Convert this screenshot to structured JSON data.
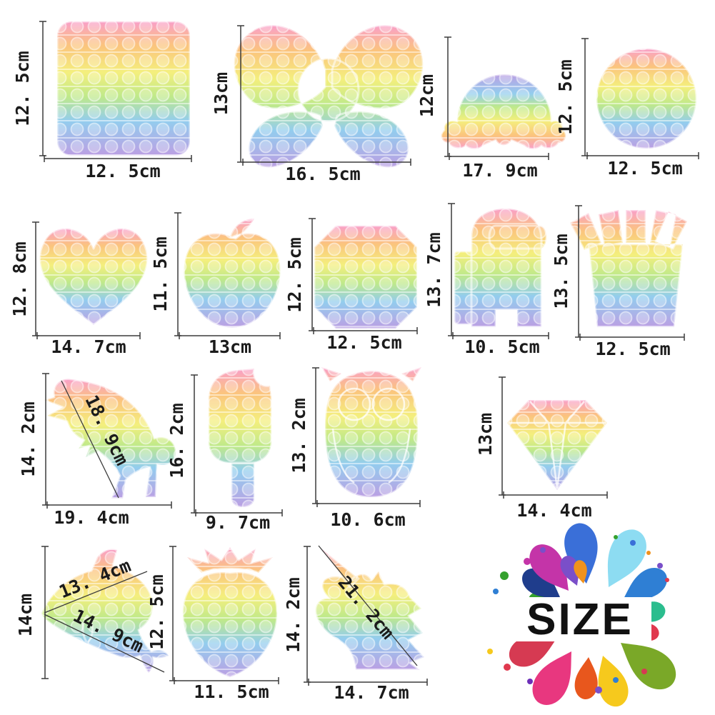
{
  "rainbow": {
    "stops": [
      [
        "0%",
        "#f99fc9"
      ],
      [
        "18%",
        "#fbc47d"
      ],
      [
        "38%",
        "#f4ef7d"
      ],
      [
        "56%",
        "#bfe98a"
      ],
      [
        "74%",
        "#93cdee"
      ],
      [
        "100%",
        "#bb9fe3"
      ]
    ]
  },
  "items": {
    "square": {
      "height_label": "12. 5cm",
      "width_label": "12. 5cm"
    },
    "bow": {
      "height_label": "13cm",
      "width_label": "16. 5cm"
    },
    "rainbow_arch": {
      "height_label": "12cm",
      "width_label": "17. 9cm"
    },
    "circle": {
      "height_label": "12. 5cm",
      "width_label": "12. 5cm"
    },
    "heart": {
      "height_label": "12. 8cm",
      "width_label": "14. 7cm"
    },
    "apple": {
      "height_label": "11. 5cm",
      "width_label": "13cm"
    },
    "octagon": {
      "height_label": "12. 5cm",
      "width_label": "12. 5cm"
    },
    "crewmate": {
      "height_label": "13. 7cm",
      "width_label": "10. 5cm"
    },
    "fries": {
      "height_label": "13. 5cm",
      "width_label": "12. 5cm"
    },
    "dinosaur": {
      "height_label": "14. 2cm",
      "width_label": "19. 4cm",
      "diagonal_label": "18. 9cm"
    },
    "popsicle": {
      "height_label": "16. 2cm",
      "width_label": "9. 7cm"
    },
    "owl": {
      "height_label": "13. 2cm",
      "width_label": "10. 6cm"
    },
    "diamond": {
      "height_label": "13cm",
      "width_label": "14. 4cm"
    },
    "dolphin": {
      "height_label": "14cm",
      "diagonal_top_label": "13. 4cm",
      "diagonal_bottom_label": "14. 9cm"
    },
    "strawberry": {
      "height_label": "12. 5cm",
      "width_label": "11. 5cm"
    },
    "unicorn": {
      "height_label": "14. 2cm",
      "width_label": "14. 7cm",
      "diagonal_label": "21. 2cm"
    }
  },
  "logo": {
    "text": "SIZE",
    "palette": [
      "#3a6fd8",
      "#8ddcf2",
      "#2f7fd4",
      "#2bbd8e",
      "#e0394e",
      "#7aa828",
      "#f6c91d",
      "#f0921c",
      "#e8377f",
      "#d63a52",
      "#c434a8",
      "#7a4fc9",
      "#1f3d8c",
      "#35a12e",
      "#6c2fb8",
      "#e8571d"
    ]
  }
}
